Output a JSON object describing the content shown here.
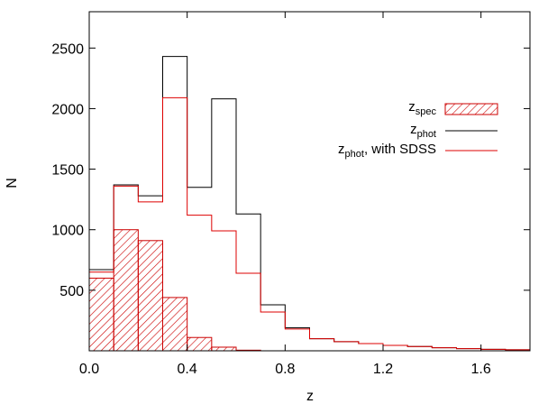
{
  "chart_data": {
    "type": "bar",
    "title": "",
    "xlabel": "z",
    "ylabel": "N",
    "xlim": [
      0.0,
      1.8
    ],
    "ylim": [
      0,
      2800
    ],
    "bin_width": 0.1,
    "bin_edges": [
      0.0,
      0.1,
      0.2,
      0.3,
      0.4,
      0.5,
      0.6,
      0.7,
      0.8,
      0.9,
      1.0,
      1.1,
      1.2,
      1.3,
      1.4,
      1.5,
      1.6,
      1.7,
      1.8
    ],
    "x_ticks": [
      "0.0",
      "0.4",
      "0.8",
      "1.2",
      "1.6"
    ],
    "y_ticks": [
      "500",
      "1000",
      "1500",
      "2000",
      "2500"
    ],
    "legend_position": "top-right",
    "series": [
      {
        "name": "z_spec",
        "label_main": "z",
        "label_sub": "spec",
        "label_suffix": "",
        "style": "hatched",
        "color": "#cc0000",
        "values": [
          600,
          1000,
          910,
          440,
          110,
          30,
          5,
          0,
          0,
          0,
          0,
          0,
          0,
          0,
          0,
          0,
          0,
          0
        ]
      },
      {
        "name": "z_phot",
        "label_main": "z",
        "label_sub": "phot",
        "label_suffix": "",
        "style": "step",
        "color": "#000000",
        "values": [
          670,
          1370,
          1280,
          2430,
          1350,
          2080,
          1130,
          380,
          190,
          100,
          75,
          60,
          45,
          35,
          25,
          18,
          12,
          8
        ]
      },
      {
        "name": "z_phot, with SDSS",
        "label_main": "z",
        "label_sub": "phot",
        "label_suffix": ", with SDSS",
        "style": "step",
        "color": "#dd0000",
        "values": [
          650,
          1360,
          1230,
          2090,
          1120,
          990,
          640,
          320,
          180,
          100,
          75,
          60,
          45,
          35,
          25,
          18,
          12,
          8
        ]
      }
    ]
  }
}
